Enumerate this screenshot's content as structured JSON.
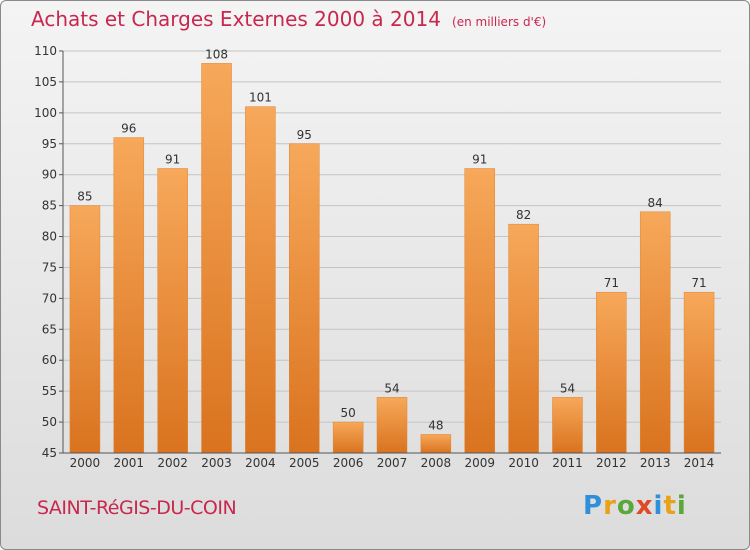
{
  "header": {
    "title": "Achats et Charges Externes 2000 à 2014",
    "unit": "(en milliers d'€)"
  },
  "chart_data": {
    "type": "bar",
    "categories": [
      "2000",
      "2001",
      "2002",
      "2003",
      "2004",
      "2005",
      "2006",
      "2007",
      "2008",
      "2009",
      "2010",
      "2011",
      "2012",
      "2013",
      "2014"
    ],
    "values": [
      85,
      96,
      91,
      108,
      101,
      95,
      50,
      54,
      48,
      91,
      82,
      54,
      71,
      84,
      71
    ],
    "ylim": [
      45,
      110
    ],
    "yticks": [
      45,
      50,
      55,
      60,
      65,
      70,
      75,
      80,
      85,
      90,
      95,
      100,
      105,
      110
    ],
    "grid": true,
    "bar_color": "#f0962e"
  },
  "footer": {
    "commune": "SAINT-RéGIS-DU-COIN",
    "logo": "Proxiti"
  }
}
